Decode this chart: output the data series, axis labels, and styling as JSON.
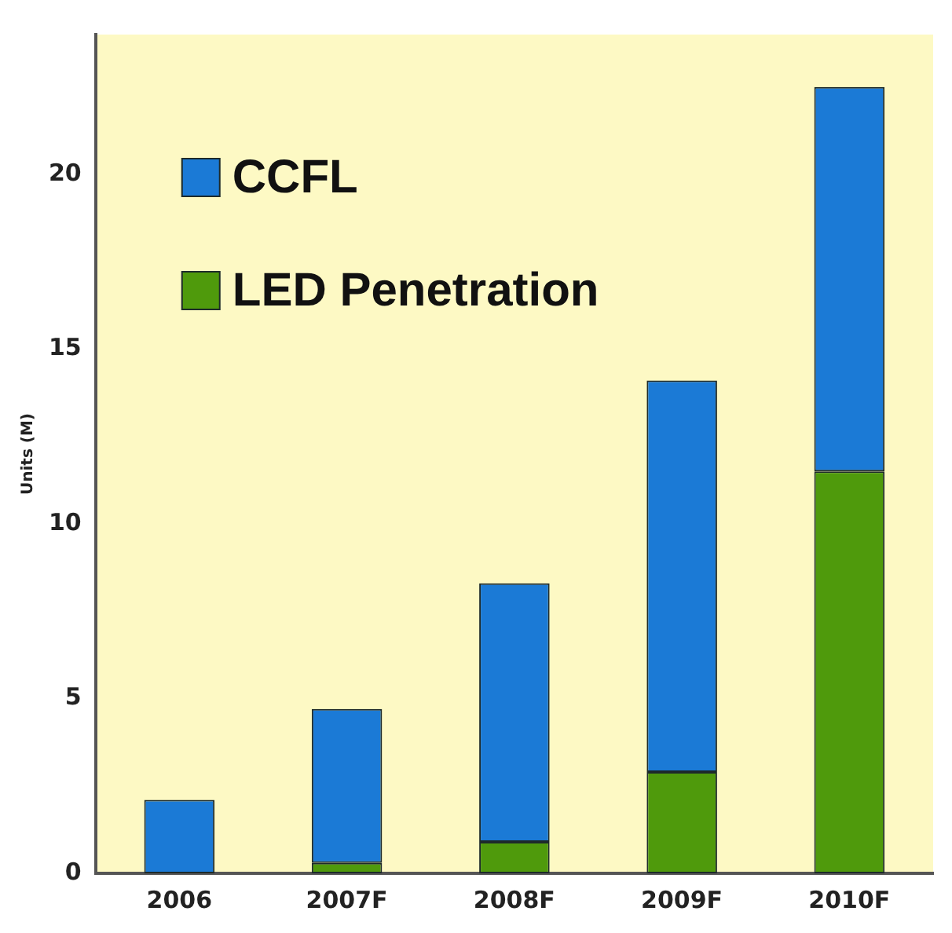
{
  "chart_data": {
    "type": "bar",
    "stacked": true,
    "ylabel": "Units (M)",
    "categories": [
      "2006",
      "2007F",
      "2008F",
      "2009F",
      "2010F"
    ],
    "series": [
      {
        "name": "LED Penetration",
        "color": "#4f9a0c",
        "values": [
          0,
          0.3,
          0.9,
          2.9,
          11.5
        ]
      },
      {
        "name": "CCFL",
        "color": "#1b7ad6",
        "values": [
          2.1,
          4.4,
          7.4,
          11.2,
          11.0
        ]
      }
    ],
    "ylim": [
      0,
      24
    ],
    "yticks": [
      0,
      5,
      10,
      15,
      20
    ],
    "grid": false,
    "legend": "top left"
  }
}
